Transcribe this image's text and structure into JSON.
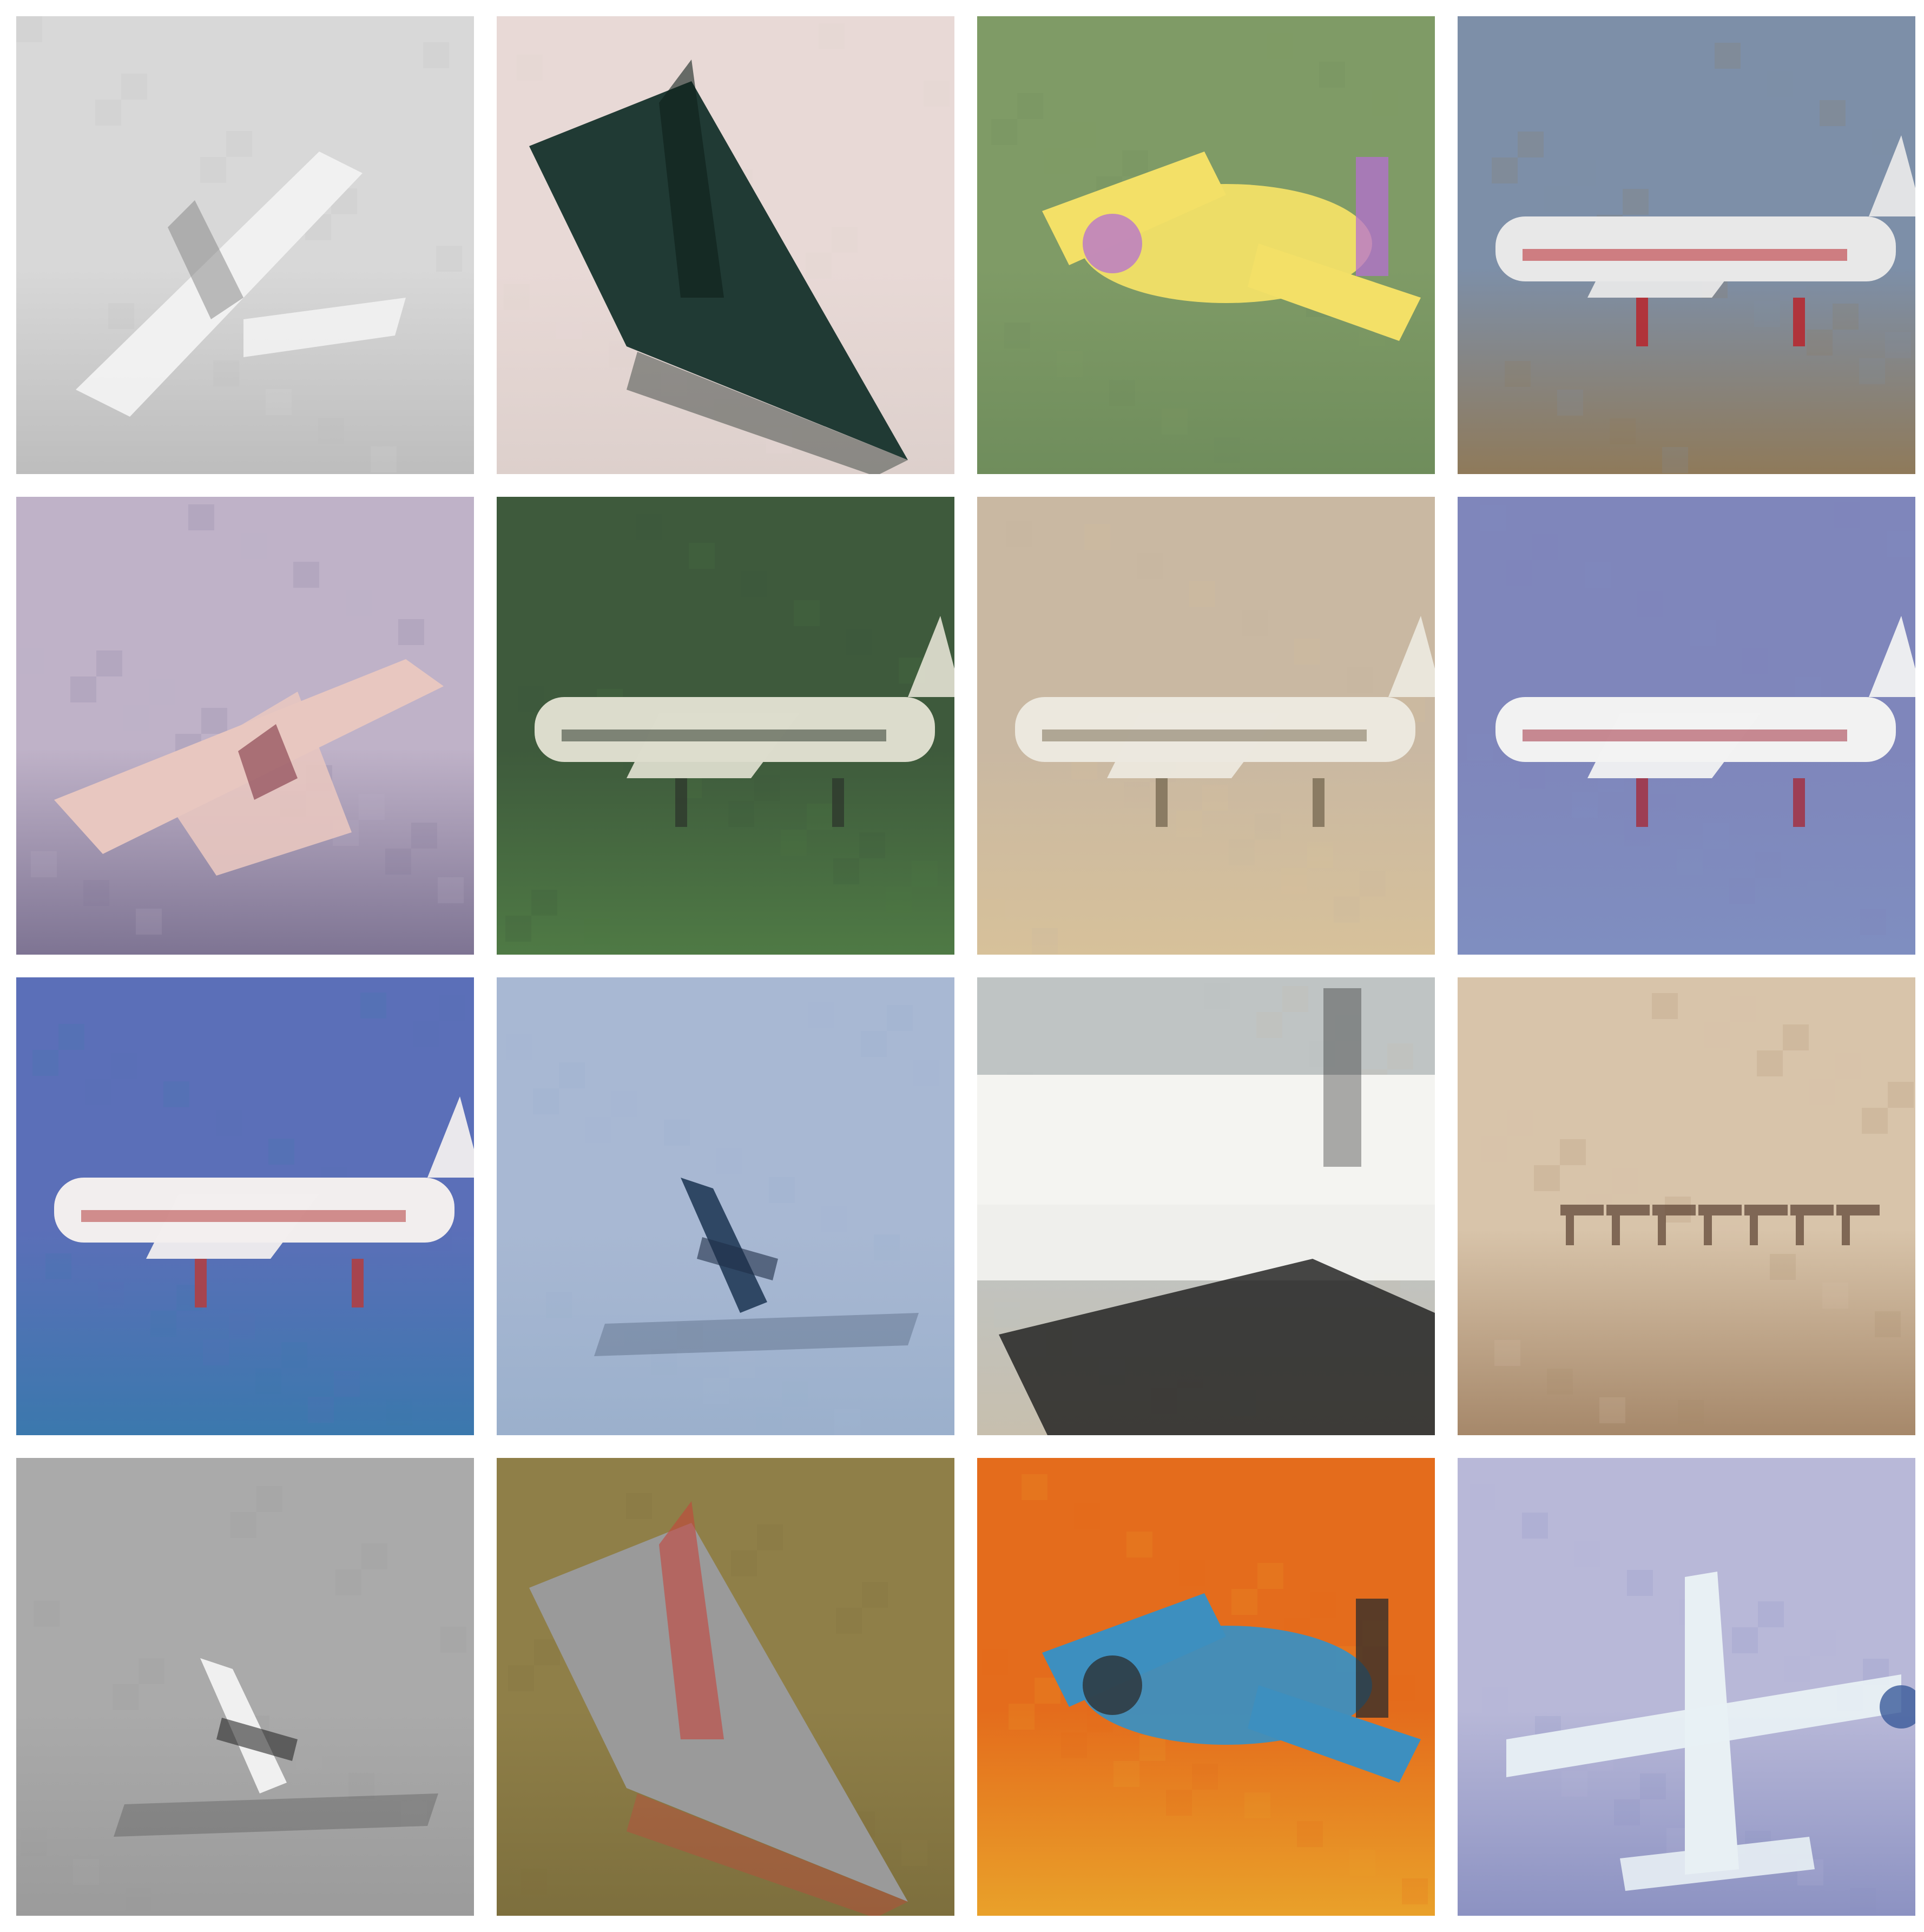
{
  "grid": {
    "rows": 4,
    "cols": 4,
    "background": "#ffffff",
    "tiles": [
      {
        "subject": "airplane",
        "sky": "#d8d8d8",
        "ground": "#bdbdbd",
        "body": "#f2f2f2",
        "accent": "#8a8a8a",
        "pose": "diag"
      },
      {
        "subject": "airplane",
        "sky": "#e8d9d6",
        "ground": "#ddd0cc",
        "body": "#203a34",
        "accent": "#0f1f1a",
        "pose": "delta"
      },
      {
        "subject": "airplane",
        "sky": "#7f9b66",
        "ground": "#6f8d5c",
        "body": "#f3e067",
        "accent": "#b46fd1",
        "pose": "toy"
      },
      {
        "subject": "airplane",
        "sky": "#7d8fa8",
        "ground": "#8f7a5a",
        "body": "#e8e8e8",
        "accent": "#b8242c",
        "pose": "side"
      },
      {
        "subject": "airplane",
        "sky": "#bfb2c8",
        "ground": "#7e7493",
        "body": "#e8c7c0",
        "accent": "#7f3342",
        "pose": "bank"
      },
      {
        "subject": "airplane",
        "sky": "#3e5a3c",
        "ground": "#4f7a45",
        "body": "#dcdccc",
        "accent": "#2f3b2e",
        "pose": "side"
      },
      {
        "subject": "airplane",
        "sky": "#c9b8a2",
        "ground": "#d7c19a",
        "body": "#ece8de",
        "accent": "#7e7058",
        "pose": "side"
      },
      {
        "subject": "airplane",
        "sky": "#7f86bb",
        "ground": "#7f8ec0",
        "body": "#f2f2f2",
        "accent": "#a23142",
        "pose": "side"
      },
      {
        "subject": "airplane",
        "sky": "#5b6fb8",
        "ground": "#3b78ad",
        "body": "#f2eeee",
        "accent": "#b53c3c",
        "pose": "side"
      },
      {
        "subject": "airplane",
        "sky": "#a8b8d3",
        "ground": "#9bb0cc",
        "body": "#2f4764",
        "accent": "#1f2f47",
        "pose": "small"
      },
      {
        "subject": "airplane",
        "sky": "#bfc4c4",
        "ground": "#c7bfae",
        "body": "#f4f4f1",
        "accent": "#1a1a1a",
        "pose": "closeup"
      },
      {
        "subject": "airplane",
        "sky": "#d8c4aa",
        "ground": "#a6886a",
        "body": "#7a5c45",
        "accent": "#5a4030",
        "pose": "far"
      },
      {
        "subject": "airplane",
        "sky": "#aaaaaa",
        "ground": "#9b9b9b",
        "body": "#f0f0f0",
        "accent": "#2a2a2a",
        "pose": "small"
      },
      {
        "subject": "airplane",
        "sky": "#8f7f48",
        "ground": "#7d6f3d",
        "body": "#9a9a9a",
        "accent": "#c5453c",
        "pose": "delta"
      },
      {
        "subject": "airplane",
        "sky": "#e46c1c",
        "ground": "#e9a12a",
        "body": "#3d8fbf",
        "accent": "#2b2b2b",
        "pose": "toy"
      },
      {
        "subject": "airplane",
        "sky": "#b8b8d8",
        "ground": "#8c92c2",
        "body": "#e8f0f4",
        "accent": "#3a5a9a",
        "pose": "up"
      }
    ]
  }
}
